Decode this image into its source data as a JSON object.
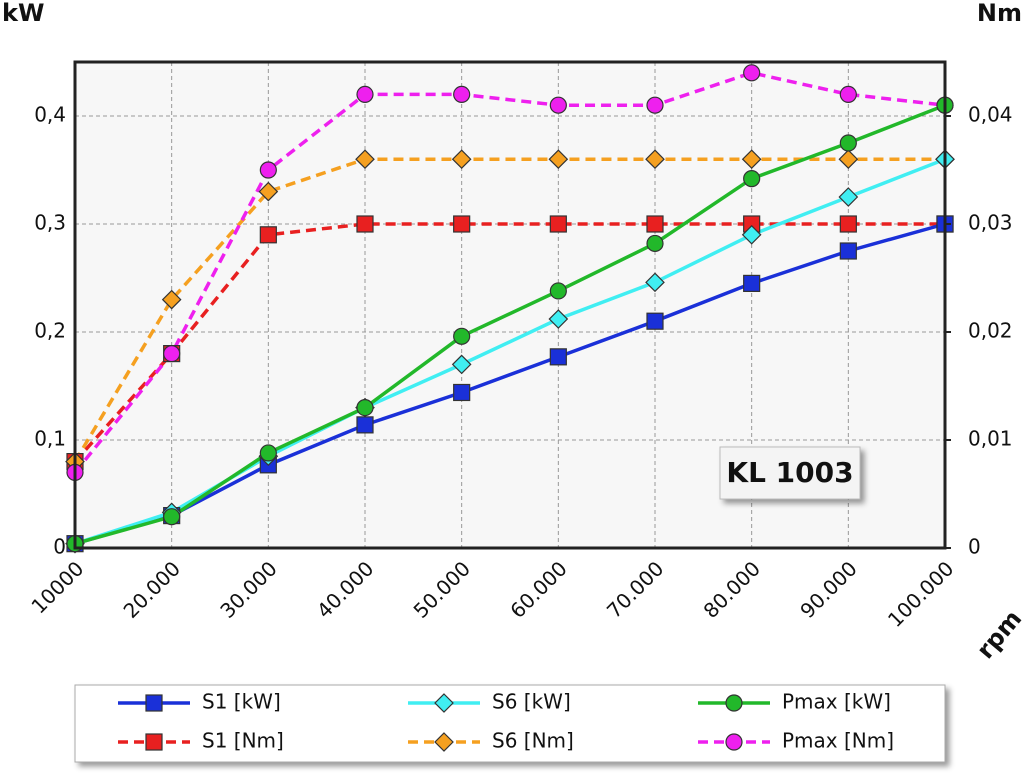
{
  "chart_data": {
    "type": "line",
    "y_label": "kW",
    "y2_label": "Nm",
    "x_label": "rpm",
    "annotation": "KL 1003",
    "x": [
      10000,
      20000,
      30000,
      40000,
      50000,
      60000,
      70000,
      80000,
      90000,
      100000
    ],
    "xlim": [
      10000,
      100000
    ],
    "xticks": [
      10000,
      {
        "value": 20000,
        "label": "20.000"
      },
      {
        "value": 30000,
        "label": "30.000"
      },
      {
        "value": 40000,
        "label": "40.000"
      },
      {
        "value": 50000,
        "label": "50.000"
      },
      {
        "value": 60000,
        "label": "60.000"
      },
      {
        "value": 70000,
        "label": "70.000"
      },
      {
        "value": 80000,
        "label": "80.000"
      },
      {
        "value": 90000,
        "label": "90.000"
      },
      {
        "value": 100000,
        "label": "100.000"
      }
    ],
    "ylim": [
      0,
      0.45
    ],
    "yticks": [
      0,
      {
        "value": 0.1,
        "label": "0,1"
      },
      {
        "value": 0.2,
        "label": "0,2"
      },
      {
        "value": 0.3,
        "label": "0,3"
      },
      {
        "value": 0.4,
        "label": "0,4"
      }
    ],
    "y2lim": [
      0,
      0.045
    ],
    "y2ticks": [
      0,
      {
        "value": 0.01,
        "label": "0,01"
      },
      {
        "value": 0.02,
        "label": "0,02"
      },
      {
        "value": 0.03,
        "label": "0,03"
      },
      {
        "value": 0.04,
        "label": "0,04"
      }
    ],
    "grid": true,
    "series": [
      {
        "name": "S1 [Nm]",
        "axis": "y2",
        "color": "#e82020",
        "marker": "square",
        "dashed": true,
        "values": [
          0.008,
          0.018,
          0.029,
          0.03,
          0.03,
          0.03,
          0.03,
          0.03,
          0.03,
          0.03
        ]
      },
      {
        "name": "S6 [Nm]",
        "axis": "y2",
        "color": "#f5a020",
        "marker": "diamond",
        "dashed": true,
        "values": [
          0.008,
          0.023,
          0.033,
          0.036,
          0.036,
          0.036,
          0.036,
          0.036,
          0.036,
          0.036
        ]
      },
      {
        "name": "Pmax [Nm]",
        "axis": "y2",
        "color": "#ee20ee",
        "marker": "circle",
        "dashed": true,
        "values": [
          0.007,
          0.018,
          0.035,
          0.042,
          0.042,
          0.041,
          0.041,
          0.044,
          0.042,
          0.041
        ]
      },
      {
        "name": "S1 [kW]",
        "color": "#1a30d8",
        "marker": "square",
        "dashed": false,
        "values": [
          0.004,
          0.03,
          0.077,
          0.114,
          0.144,
          0.177,
          0.21,
          0.245,
          0.275,
          0.3
        ]
      },
      {
        "name": "S6 [kW]",
        "color": "#40eef2",
        "marker": "diamond",
        "dashed": false,
        "values": [
          0.004,
          0.033,
          0.085,
          0.13,
          0.17,
          0.212,
          0.246,
          0.29,
          0.325,
          0.36
        ]
      },
      {
        "name": "Pmax [kW]",
        "color": "#22b82a",
        "marker": "circle",
        "dashed": false,
        "values": [
          0.004,
          0.029,
          0.088,
          0.13,
          0.196,
          0.238,
          0.282,
          0.342,
          0.375,
          0.41
        ]
      }
    ]
  }
}
